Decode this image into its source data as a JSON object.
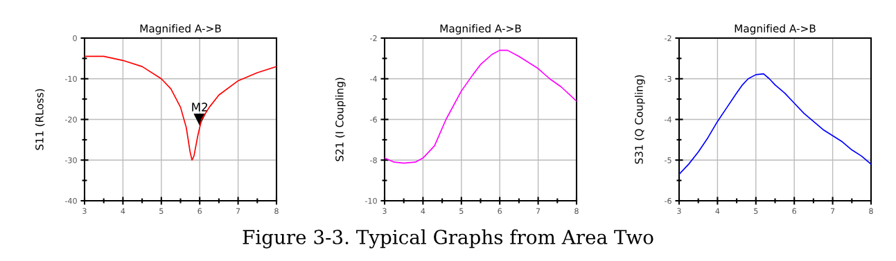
{
  "chart_data": [
    {
      "type": "line",
      "title": "Magnified A->B",
      "ylabel": "S11 (RLoss)",
      "x": [
        3,
        3.5,
        4,
        4.5,
        5,
        5.25,
        5.5,
        5.65,
        5.75,
        5.8,
        5.85,
        5.95,
        6.05,
        6.25,
        6.5,
        7,
        7.5,
        8
      ],
      "series": [
        {
          "color": "#ff0000",
          "values": [
            -4.5,
            -4.5,
            -5.5,
            -7,
            -10,
            -12.5,
            -17,
            -22,
            -28,
            -30,
            -29,
            -24,
            -20,
            -17,
            -14,
            -10.5,
            -8.5,
            -7
          ]
        }
      ],
      "xlim": [
        3,
        8
      ],
      "xticks": [
        3,
        {
          "value": 3.5,
          "label": null
        },
        4,
        {
          "value": 4.5,
          "label": null
        },
        5,
        {
          "value": 5.5,
          "label": null
        },
        6,
        {
          "value": 6.5,
          "label": null
        },
        7,
        {
          "value": 7.5,
          "label": null
        },
        8
      ],
      "ylim": [
        -40,
        0
      ],
      "yticks": [
        -40,
        {
          "value": -35,
          "label": null
        },
        -30,
        {
          "value": -25,
          "label": null
        },
        -20,
        {
          "value": -15,
          "label": null
        },
        -10,
        {
          "value": -5,
          "label": null
        },
        0
      ],
      "grid": true,
      "annotations": [
        {
          "text": "M2",
          "x": 6,
          "y": -20
        },
        "Figure 3-3. Typical Graphs from Area Two"
      ]
    },
    {
      "type": "line",
      "title": "Magnified A->B",
      "ylabel": "S21 (I Coupling)",
      "x": [
        3,
        3.25,
        3.5,
        3.8,
        4,
        4.3,
        4.6,
        5,
        5.3,
        5.5,
        5.8,
        6,
        6.2,
        6.5,
        7,
        7.3,
        7.6,
        8
      ],
      "series": [
        {
          "color": "#ff00ff",
          "values": [
            -7.9,
            -8.1,
            -8.15,
            -8.1,
            -7.9,
            -7.3,
            -6.0,
            -4.6,
            -3.8,
            -3.3,
            -2.8,
            -2.6,
            -2.6,
            -2.9,
            -3.5,
            -4.0,
            -4.4,
            -5.1
          ]
        }
      ],
      "xlim": [
        3,
        8
      ],
      "xticks": [
        3,
        {
          "value": 3.5,
          "label": null
        },
        4,
        {
          "value": 4.5,
          "label": null
        },
        5,
        {
          "value": 5.5,
          "label": null
        },
        6,
        {
          "value": 6.5,
          "label": null
        },
        7,
        {
          "value": 7.5,
          "label": null
        },
        8
      ],
      "ylim": [
        -10,
        -2
      ],
      "yticks": [
        -10,
        {
          "value": -9,
          "label": null
        },
        -8,
        {
          "value": -7,
          "label": null
        },
        -6,
        {
          "value": -5,
          "label": null
        },
        -4,
        {
          "value": -3,
          "label": null
        },
        -2
      ],
      "grid": true
    },
    {
      "type": "line",
      "title": "Magnified A->B",
      "ylabel": "S31 (Q Coupling)",
      "x": [
        3,
        3.25,
        3.5,
        3.75,
        4,
        4.25,
        4.5,
        4.65,
        4.8,
        5,
        5.2,
        5.35,
        5.5,
        5.75,
        6,
        6.25,
        6.5,
        6.75,
        7,
        7.25,
        7.5,
        7.75,
        8
      ],
      "series": [
        {
          "color": "#0000ff",
          "values": [
            -5.35,
            -5.1,
            -4.8,
            -4.45,
            -4.05,
            -3.7,
            -3.35,
            -3.15,
            -3.0,
            -2.9,
            -2.88,
            -3.0,
            -3.15,
            -3.35,
            -3.6,
            -3.85,
            -4.05,
            -4.25,
            -4.4,
            -4.55,
            -4.75,
            -4.9,
            -5.1
          ]
        }
      ],
      "xlim": [
        3,
        8
      ],
      "xticks": [
        3,
        {
          "value": 3.5,
          "label": null
        },
        4,
        {
          "value": 4.5,
          "label": null
        },
        5,
        {
          "value": 5.5,
          "label": null
        },
        6,
        {
          "value": 6.5,
          "label": null
        },
        7,
        {
          "value": 7.5,
          "label": null
        },
        8
      ],
      "ylim": [
        -6,
        -2
      ],
      "yticks": [
        -6,
        {
          "value": -5.5,
          "label": null
        },
        -5,
        {
          "value": -4.5,
          "label": null
        },
        -4,
        {
          "value": -3.5,
          "label": null
        },
        -3,
        {
          "value": -2.5,
          "label": null
        },
        -2
      ],
      "grid": true
    }
  ]
}
